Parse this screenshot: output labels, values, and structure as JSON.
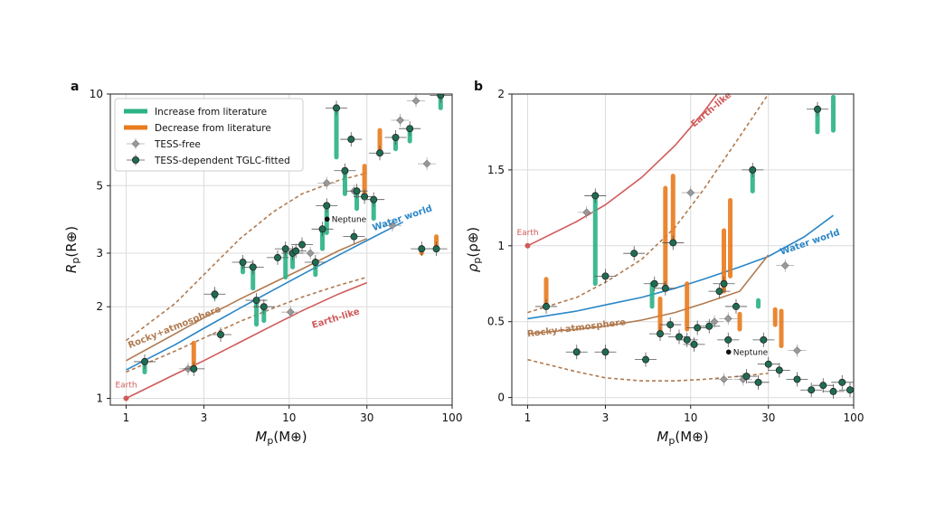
{
  "colors": {
    "increase": "#2bb287",
    "decrease": "#e87b1e",
    "tess_free": "#999999",
    "tglc": "#1e6d52",
    "earth": "#d05a5a",
    "water": "#2a86c7",
    "rocky_atm": "#b07a4f",
    "rocky_atm_dash": "#b07a4f",
    "grid": "#dcdcdc"
  },
  "chart_data": [
    {
      "type": "scatter",
      "panel": "a",
      "xlabel": "M_p(M⊕)",
      "xlabel_main": "M",
      "xlabel_sub": "p",
      "xlabel_unit": "(M⊕)",
      "ylabel_main": "R",
      "ylabel_sub": "p",
      "ylabel_unit": "(R⊕)",
      "xscale": "log",
      "yscale": "log",
      "xlim": [
        0.8,
        100
      ],
      "ylim": [
        0.95,
        10
      ],
      "xticks": [
        1,
        3,
        10,
        30,
        100
      ],
      "xtick_labels": [
        "1",
        "3",
        "10",
        "30",
        "100"
      ],
      "yticks": [
        1,
        2,
        3,
        5,
        10
      ],
      "ytick_labels": [
        "1",
        "2",
        "3",
        "5",
        "10"
      ],
      "legend": {
        "position": "top-left",
        "entries": [
          "Increase from literature",
          "Decrease from literature",
          "TESS-free",
          "TESS-dependent TGLC-fitted"
        ]
      },
      "curves": [
        {
          "name": "Earth-like",
          "x": [
            1,
            2,
            3,
            5,
            8,
            12,
            20,
            30
          ],
          "y": [
            1.0,
            1.2,
            1.33,
            1.53,
            1.74,
            1.94,
            2.2,
            2.4
          ]
        },
        {
          "name": "Water world",
          "x": [
            1,
            2,
            3,
            5,
            8,
            12,
            20,
            30,
            50
          ],
          "y": [
            1.24,
            1.5,
            1.7,
            1.98,
            2.27,
            2.55,
            2.95,
            3.3,
            3.8
          ]
        },
        {
          "name": "Rocky+atmosphere",
          "x": [
            1,
            2,
            3,
            5,
            8,
            12,
            20,
            30
          ],
          "y": [
            1.33,
            1.63,
            1.84,
            2.12,
            2.4,
            2.66,
            3.05,
            3.35
          ]
        },
        {
          "name": "rocky-dashed-lower",
          "x": [
            1,
            2,
            3,
            5,
            8,
            12,
            20,
            30
          ],
          "y": [
            1.22,
            1.43,
            1.58,
            1.79,
            1.98,
            2.15,
            2.35,
            2.5
          ]
        },
        {
          "name": "rocky-dashed-upper",
          "x": [
            1,
            2,
            3,
            5,
            8,
            12,
            20,
            30
          ],
          "y": [
            1.55,
            2.05,
            2.55,
            3.35,
            4.1,
            4.7,
            5.2,
            5.5
          ]
        }
      ],
      "curve_labels": [
        {
          "text": "Earth-like",
          "x": 14,
          "y": 1.7,
          "angle": -17
        },
        {
          "text": "Water world",
          "x": 33,
          "y": 3.55,
          "angle": -19
        },
        {
          "text": "Rocky+atmosphere",
          "x": 1.05,
          "y": 1.46,
          "angle": -22
        }
      ],
      "reference_points": [
        {
          "name": "Earth",
          "x": 1,
          "y": 1
        },
        {
          "name": "Neptune",
          "x": 17.1,
          "y": 3.88
        }
      ],
      "changes": [
        {
          "x": 1.3,
          "y0": 1.32,
          "y1": 1.22,
          "kind": "increase"
        },
        {
          "x": 2.6,
          "y0": 1.25,
          "y1": 1.52,
          "kind": "decrease"
        },
        {
          "x": 3.5,
          "y0": 2.2,
          "y1": 2.15,
          "kind": "increase"
        },
        {
          "x": 5.2,
          "y0": 2.8,
          "y1": 2.6,
          "kind": "increase"
        },
        {
          "x": 6.0,
          "y0": 2.7,
          "y1": 2.3,
          "kind": "increase"
        },
        {
          "x": 6.3,
          "y0": 2.1,
          "y1": 1.75,
          "kind": "increase"
        },
        {
          "x": 7.0,
          "y0": 2.0,
          "y1": 1.8,
          "kind": "increase"
        },
        {
          "x": 9.5,
          "y0": 3.1,
          "y1": 2.5,
          "kind": "increase"
        },
        {
          "x": 10.5,
          "y0": 3.0,
          "y1": 2.7,
          "kind": "increase"
        },
        {
          "x": 14.5,
          "y0": 2.8,
          "y1": 2.55,
          "kind": "increase"
        },
        {
          "x": 16.0,
          "y0": 3.6,
          "y1": 3.1,
          "kind": "increase"
        },
        {
          "x": 17.0,
          "y0": 4.3,
          "y1": 3.5,
          "kind": "increase"
        },
        {
          "x": 19.5,
          "y0": 9.0,
          "y1": 6.2,
          "kind": "increase"
        },
        {
          "x": 22.0,
          "y0": 5.6,
          "y1": 4.7,
          "kind": "increase"
        },
        {
          "x": 26.0,
          "y0": 4.8,
          "y1": 4.2,
          "kind": "increase"
        },
        {
          "x": 29.0,
          "y0": 4.6,
          "y1": 5.8,
          "kind": "decrease"
        },
        {
          "x": 33.0,
          "y0": 4.5,
          "y1": 3.9,
          "kind": "increase"
        },
        {
          "x": 36.0,
          "y0": 6.4,
          "y1": 7.6,
          "kind": "decrease"
        },
        {
          "x": 45.0,
          "y0": 7.2,
          "y1": 6.6,
          "kind": "increase"
        },
        {
          "x": 55.0,
          "y0": 7.7,
          "y1": 7.0,
          "kind": "increase"
        },
        {
          "x": 65.0,
          "y0": 3.1,
          "y1": 3.0,
          "kind": "decrease"
        },
        {
          "x": 80.0,
          "y0": 3.1,
          "y1": 3.4,
          "kind": "decrease"
        },
        {
          "x": 85.0,
          "y0": 9.9,
          "y1": 9.0,
          "kind": "increase"
        }
      ],
      "tess_free": [
        {
          "x": 2.4,
          "y": 1.25
        },
        {
          "x": 10.2,
          "y": 1.92
        },
        {
          "x": 13.5,
          "y": 3.0
        },
        {
          "x": 17.0,
          "y": 5.1
        },
        {
          "x": 25.0,
          "y": 4.8
        },
        {
          "x": 43.0,
          "y": 3.7
        },
        {
          "x": 48.0,
          "y": 8.2
        },
        {
          "x": 60.0,
          "y": 9.5
        },
        {
          "x": 70.0,
          "y": 5.9
        }
      ],
      "tglc": [
        {
          "x": 1.3,
          "y": 1.32
        },
        {
          "x": 2.6,
          "y": 1.25
        },
        {
          "x": 3.5,
          "y": 2.2
        },
        {
          "x": 3.8,
          "y": 1.62
        },
        {
          "x": 5.2,
          "y": 2.8
        },
        {
          "x": 6.0,
          "y": 2.7
        },
        {
          "x": 6.3,
          "y": 2.1
        },
        {
          "x": 7.0,
          "y": 2.0
        },
        {
          "x": 8.5,
          "y": 2.9
        },
        {
          "x": 9.5,
          "y": 3.1
        },
        {
          "x": 10.5,
          "y": 3.0
        },
        {
          "x": 12.0,
          "y": 3.2
        },
        {
          "x": 14.5,
          "y": 2.8
        },
        {
          "x": 16.0,
          "y": 3.6
        },
        {
          "x": 17.0,
          "y": 4.3
        },
        {
          "x": 19.5,
          "y": 9.0
        },
        {
          "x": 22.0,
          "y": 5.6
        },
        {
          "x": 24.0,
          "y": 7.1
        },
        {
          "x": 26.0,
          "y": 4.8
        },
        {
          "x": 29.0,
          "y": 4.6
        },
        {
          "x": 33.0,
          "y": 4.5
        },
        {
          "x": 36.0,
          "y": 6.4
        },
        {
          "x": 45.0,
          "y": 7.2
        },
        {
          "x": 55.0,
          "y": 7.7
        },
        {
          "x": 65.0,
          "y": 3.1
        },
        {
          "x": 80.0,
          "y": 3.1
        },
        {
          "x": 85.0,
          "y": 9.9
        },
        {
          "x": 25.0,
          "y": 3.4
        },
        {
          "x": 11.0,
          "y": 3.05
        }
      ]
    },
    {
      "type": "scatter",
      "panel": "b",
      "xlabel": "M_p(M⊕)",
      "xlabel_main": "M",
      "xlabel_sub": "p",
      "xlabel_unit": "(M⊕)",
      "ylabel_main": "ρ",
      "ylabel_sub": "p",
      "ylabel_unit": "(ρ⊕)",
      "xscale": "log",
      "yscale": "linear",
      "xlim": [
        0.8,
        100
      ],
      "ylim": [
        -0.05,
        2.0
      ],
      "xticks": [
        1,
        3,
        10,
        30,
        100
      ],
      "xtick_labels": [
        "1",
        "3",
        "10",
        "30",
        "100"
      ],
      "yticks": [
        0,
        0.5,
        1,
        1.5,
        2
      ],
      "ytick_labels": [
        "0",
        "0.5",
        "1",
        "1.5",
        "2"
      ],
      "curves": [
        {
          "name": "Earth-like",
          "x": [
            1,
            2,
            3,
            5,
            8,
            12,
            15
          ],
          "y": [
            1.0,
            1.16,
            1.27,
            1.45,
            1.66,
            1.88,
            2.02
          ]
        },
        {
          "name": "Water world",
          "x": [
            1,
            2,
            3,
            5,
            8,
            12,
            20,
            30,
            50,
            75
          ],
          "y": [
            0.52,
            0.57,
            0.61,
            0.66,
            0.72,
            0.78,
            0.86,
            0.93,
            1.06,
            1.2
          ]
        },
        {
          "name": "Rocky+atmosphere",
          "x": [
            1,
            2,
            3,
            5,
            8,
            12,
            20,
            30
          ],
          "y": [
            0.42,
            0.45,
            0.47,
            0.51,
            0.56,
            0.62,
            0.7,
            0.94
          ]
        },
        {
          "name": "rocky-dashed-lower",
          "x": [
            1,
            2,
            3,
            5,
            8,
            12,
            20,
            30
          ],
          "y": [
            0.56,
            0.66,
            0.76,
            0.91,
            1.12,
            1.37,
            1.72,
            2.0
          ]
        },
        {
          "name": "rocky-dashed-upper",
          "x": [
            1,
            2,
            3,
            5,
            8,
            12,
            20,
            30
          ],
          "y": [
            0.25,
            0.17,
            0.13,
            0.11,
            0.11,
            0.12,
            0.14,
            0.16
          ]
        }
      ],
      "curve_labels": [
        {
          "text": "Earth-like",
          "x": 10.5,
          "y": 1.78,
          "angle": -40
        },
        {
          "text": "Water world",
          "x": 36,
          "y": 0.94,
          "angle": -19
        },
        {
          "text": "Rocky+atmosphere",
          "x": 1.0,
          "y": 0.4,
          "angle": -7
        }
      ],
      "reference_points": [
        {
          "name": "Earth",
          "x": 1,
          "y": 1
        },
        {
          "name": "Neptune",
          "x": 17.1,
          "y": 0.3
        }
      ],
      "changes": [
        {
          "x": 1.3,
          "y0": 0.6,
          "y1": 0.78,
          "kind": "decrease"
        },
        {
          "x": 2.6,
          "y0": 1.33,
          "y1": 0.75,
          "kind": "increase"
        },
        {
          "x": 5.8,
          "y0": 0.75,
          "y1": 0.6,
          "kind": "increase"
        },
        {
          "x": 6.5,
          "y0": 0.42,
          "y1": 0.65,
          "kind": "decrease"
        },
        {
          "x": 7.0,
          "y0": 0.72,
          "y1": 1.38,
          "kind": "decrease"
        },
        {
          "x": 7.8,
          "y0": 1.02,
          "y1": 1.46,
          "kind": "decrease"
        },
        {
          "x": 9.5,
          "y0": 0.45,
          "y1": 0.75,
          "kind": "decrease"
        },
        {
          "x": 16.0,
          "y0": 0.7,
          "y1": 1.1,
          "kind": "decrease"
        },
        {
          "x": 17.5,
          "y0": 0.8,
          "y1": 1.3,
          "kind": "decrease"
        },
        {
          "x": 20.0,
          "y0": 0.45,
          "y1": 0.55,
          "kind": "decrease"
        },
        {
          "x": 24.0,
          "y0": 1.5,
          "y1": 1.36,
          "kind": "increase"
        },
        {
          "x": 26.0,
          "y0": 0.64,
          "y1": 0.6,
          "kind": "increase"
        },
        {
          "x": 33.0,
          "y0": 0.48,
          "y1": 0.58,
          "kind": "decrease"
        },
        {
          "x": 36.0,
          "y0": 0.34,
          "y1": 0.57,
          "kind": "decrease"
        },
        {
          "x": 60.0,
          "y0": 1.9,
          "y1": 1.75,
          "kind": "increase"
        },
        {
          "x": 75.0,
          "y0": 1.76,
          "y1": 1.98,
          "kind": "increase"
        }
      ],
      "tess_free": [
        {
          "x": 2.3,
          "y": 1.22
        },
        {
          "x": 10.0,
          "y": 1.35
        },
        {
          "x": 14.0,
          "y": 0.5
        },
        {
          "x": 17.0,
          "y": 0.52
        },
        {
          "x": 21.0,
          "y": 0.12
        },
        {
          "x": 38.0,
          "y": 0.87
        },
        {
          "x": 45.0,
          "y": 0.31
        },
        {
          "x": 16.0,
          "y": 0.12
        }
      ],
      "tglc": [
        {
          "x": 1.3,
          "y": 0.6
        },
        {
          "x": 2.0,
          "y": 0.3
        },
        {
          "x": 2.6,
          "y": 1.33
        },
        {
          "x": 3.0,
          "y": 0.8
        },
        {
          "x": 3.0,
          "y": 0.3
        },
        {
          "x": 4.5,
          "y": 0.95
        },
        {
          "x": 5.3,
          "y": 0.25
        },
        {
          "x": 6.0,
          "y": 0.75
        },
        {
          "x": 6.5,
          "y": 0.42
        },
        {
          "x": 7.0,
          "y": 0.72
        },
        {
          "x": 7.5,
          "y": 0.48
        },
        {
          "x": 7.8,
          "y": 1.02
        },
        {
          "x": 8.5,
          "y": 0.4
        },
        {
          "x": 9.5,
          "y": 0.38
        },
        {
          "x": 10.5,
          "y": 0.35
        },
        {
          "x": 11.0,
          "y": 0.46
        },
        {
          "x": 13.0,
          "y": 0.47
        },
        {
          "x": 15.0,
          "y": 0.7
        },
        {
          "x": 16.0,
          "y": 0.75
        },
        {
          "x": 17.0,
          "y": 0.38
        },
        {
          "x": 19.0,
          "y": 0.6
        },
        {
          "x": 22.0,
          "y": 0.14
        },
        {
          "x": 24.0,
          "y": 1.5
        },
        {
          "x": 26.0,
          "y": 0.1
        },
        {
          "x": 28.0,
          "y": 0.38
        },
        {
          "x": 30.0,
          "y": 0.22
        },
        {
          "x": 35.0,
          "y": 0.18
        },
        {
          "x": 45.0,
          "y": 0.12
        },
        {
          "x": 55.0,
          "y": 0.05
        },
        {
          "x": 60.0,
          "y": 1.9
        },
        {
          "x": 65.0,
          "y": 0.08
        },
        {
          "x": 75.0,
          "y": 0.04
        },
        {
          "x": 85.0,
          "y": 0.1
        },
        {
          "x": 95.0,
          "y": 0.05
        }
      ]
    }
  ],
  "panel_labels": [
    "a",
    "b"
  ]
}
